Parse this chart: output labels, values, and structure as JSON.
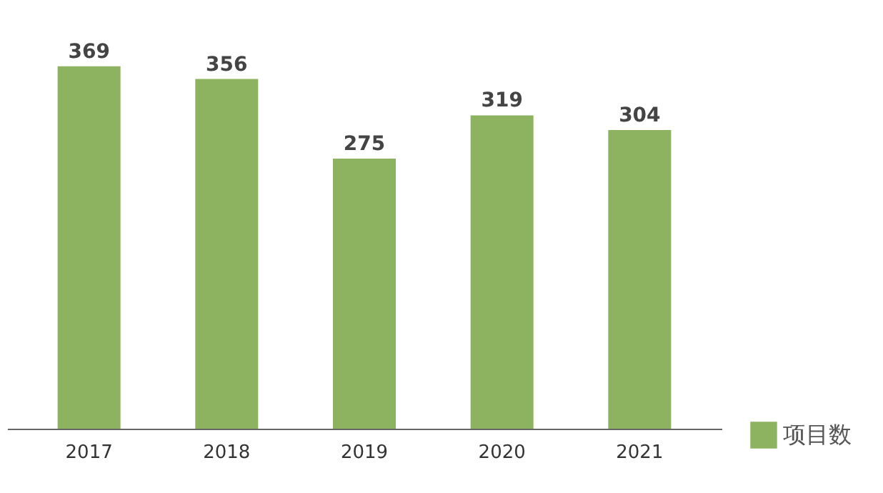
{
  "chart_data": {
    "type": "bar",
    "categories": [
      "2017",
      "2018",
      "2019",
      "2020",
      "2021"
    ],
    "series": [
      {
        "name": "项目数",
        "color": "#8db360",
        "values": [
          369,
          356,
          275,
          319,
          304
        ]
      }
    ],
    "data_labels": true,
    "grid": false,
    "legend": "bottom right"
  }
}
